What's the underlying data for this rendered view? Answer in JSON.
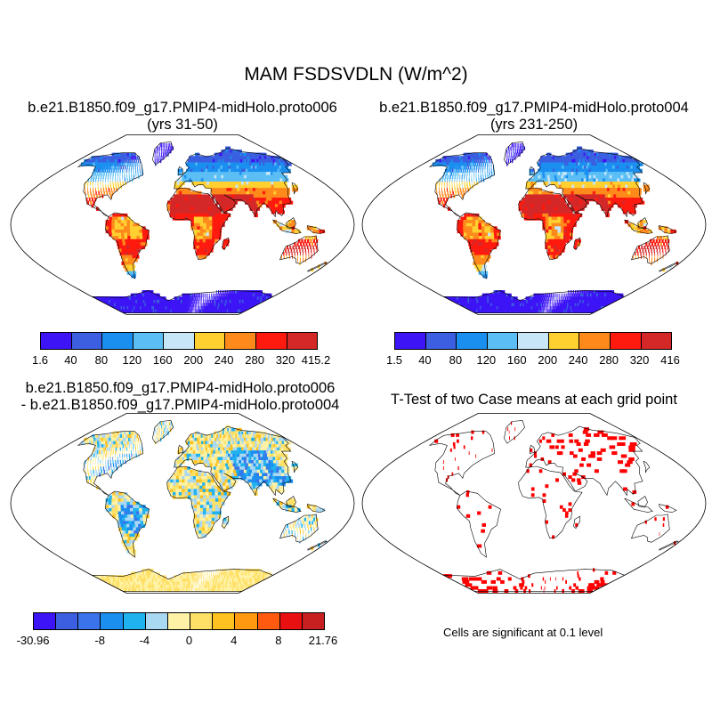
{
  "title": "MAM FSDSVDLN (W/m^2)",
  "panels": {
    "p1": {
      "line1": "b.e21.B1850.f09_g17.PMIP4-midHolo.proto006",
      "line2": "(yrs 31-50)"
    },
    "p2": {
      "line1": "b.e21.B1850.f09_g17.PMIP4-midHolo.proto004",
      "line2": "(yrs 231-250)"
    },
    "p3": {
      "line1": "b.e21.B1850.f09_g17.PMIP4-midHolo.proto006",
      "line2": "- b.e21.B1850.f09_g17.PMIP4-midHolo.proto004"
    },
    "p4": {
      "line1": "T-Test of two Case means at each grid point"
    }
  },
  "colorbars": {
    "cb1": {
      "colors": [
        "#3d14f5",
        "#3b5fe0",
        "#1a8ff0",
        "#5bbff5",
        "#c7e6f7",
        "#ffd030",
        "#ff8a1c",
        "#ff1a0f",
        "#d42828"
      ],
      "labels": [
        "1.6",
        "40",
        "80",
        "120",
        "160",
        "200",
        "240",
        "280",
        "320",
        "415.2"
      ]
    },
    "cb2": {
      "colors": [
        "#3d14f5",
        "#3b5fe0",
        "#1a8ff0",
        "#5bbff5",
        "#c7e6f7",
        "#ffd030",
        "#ff8a1c",
        "#ff1a0f",
        "#d42828"
      ],
      "labels": [
        "1.5",
        "40",
        "80",
        "120",
        "160",
        "200",
        "240",
        "280",
        "320",
        "416"
      ]
    },
    "cb3": {
      "colors": [
        "#3d14f5",
        "#3b5fe0",
        "#3b74ea",
        "#1a8ff0",
        "#1fb2ee",
        "#a9d8f2",
        "#fff2a6",
        "#ffe066",
        "#ffc220",
        "#ff9a10",
        "#ff5a10",
        "#e81010",
        "#c82020"
      ],
      "labels": [
        "-30.96",
        "-8",
        "-4",
        "0",
        "4",
        "8",
        "21.76"
      ]
    }
  },
  "significance_note": "Cells are significant at 0.1 level"
}
